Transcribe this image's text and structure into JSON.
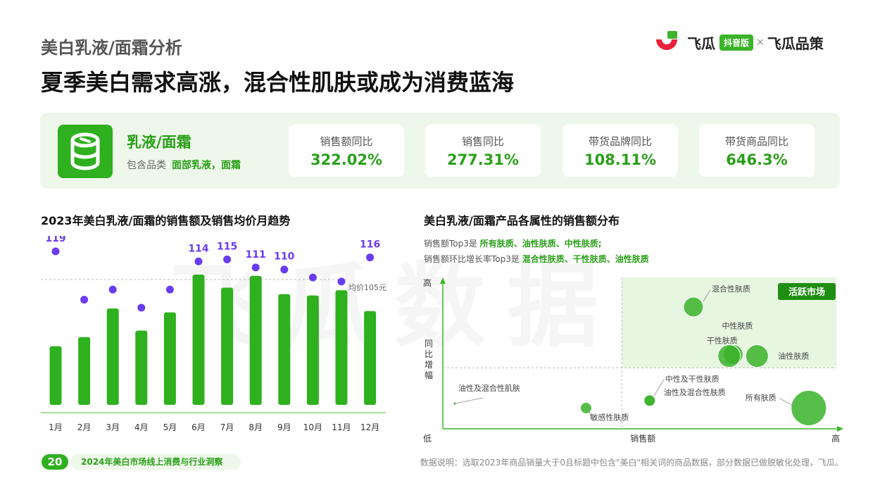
{
  "header": {
    "eyebrow": "美白乳液/面霜分析",
    "headline": "夏季美白需求高涨，混合性肌肤或成为消费蓝海"
  },
  "brand": {
    "name1": "飞瓜",
    "badge": "抖音版",
    "separator": "×",
    "name2": "飞瓜品策"
  },
  "category": {
    "icon": "lotion-jar-icon",
    "title": "乳液/面霜",
    "sub_label": "包含品类",
    "sub_value": "面部乳液，面霜"
  },
  "kpis": [
    {
      "label": "销售额同比",
      "value": "322.02%"
    },
    {
      "label": "销售同比",
      "value": "277.31%"
    },
    {
      "label": "带货品牌同比",
      "value": "108.11%"
    },
    {
      "label": "带货商品同比",
      "value": "646.3%"
    }
  ],
  "sections": {
    "left_title": "2023年美白乳液/面霜的销售额及销售均价月趋势",
    "right_title": "美白乳液/面霜产品各属性的销售额分布"
  },
  "insights": {
    "line1_prefix": "销售额Top3是 ",
    "line1_value": "所有肤质、油性肤质、中性肤质;",
    "line2_prefix": "销售额环比增长率Top3是 ",
    "line2_value": "混合性肤质、干性肤质、油性肤质"
  },
  "watermark": "飞瓜数据",
  "chart_data": [
    {
      "type": "bar",
      "categories": [
        "1月",
        "2月",
        "3月",
        "4月",
        "5月",
        "6月",
        "7月",
        "8月",
        "9月",
        "10月",
        "11月",
        "12月"
      ],
      "series": [
        {
          "values": [
            0.45,
            0.52,
            0.74,
            0.57,
            0.71,
            1.0,
            0.9,
            0.99,
            0.85,
            0.84,
            0.88,
            0.72
          ]
        },
        {
          "values": [
            119,
            95,
            100,
            91,
            100,
            114,
            115,
            111,
            110,
            106,
            104,
            116
          ]
        }
      ],
      "point_labels": [
        "119",
        "",
        "",
        "",
        "",
        "114",
        "115",
        "111",
        "110",
        "",
        "",
        "116"
      ],
      "reference_line": {
        "value": 105,
        "label": "均价105元"
      },
      "colors": {
        "bar": "#2fb01e",
        "dot": "#6a3cf0"
      }
    },
    {
      "type": "scatter",
      "xlabel": "销售额",
      "ylabel": "同比增幅",
      "x_low": "低",
      "x_high": "高",
      "y_high": "高",
      "quadrant_label": "活跃市场",
      "points": [
        {
          "name": "混合性肤质",
          "x": 0.63,
          "y": 0.82,
          "size": 14
        },
        {
          "name": "中性肤质",
          "x": 0.73,
          "y": 0.5,
          "size": 14
        },
        {
          "name": "干性肤质",
          "x": 0.72,
          "y": 0.49,
          "size": 16
        },
        {
          "name": "油性肤质",
          "x": 0.79,
          "y": 0.49,
          "size": 16
        },
        {
          "name": "所有肤质",
          "x": 0.92,
          "y": 0.14,
          "size": 25
        },
        {
          "name": "中性及干性肤质",
          "x": 0.52,
          "y": 0.19,
          "size": 8
        },
        {
          "name": "油性及混合性肤质",
          "x": 0.52,
          "y": 0.19,
          "size": 8
        },
        {
          "name": "敏感性肤质",
          "x": 0.36,
          "y": 0.14,
          "size": 8
        },
        {
          "name": "油性及混合性肌肤",
          "x": 0.03,
          "y": 0.17,
          "size": 1
        }
      ],
      "colors": {
        "bubble": "#3bb32a",
        "quadrant": "#e6f6e1"
      }
    }
  ],
  "footer": {
    "page": "20",
    "report": "2024年美白市场线上消费与行业洞察",
    "note": "数据说明：选取2023年商品销量大于0且标题中包含\"美白\"相关词的商品数据，部分数据已做脱敏化处理，飞瓜。"
  }
}
